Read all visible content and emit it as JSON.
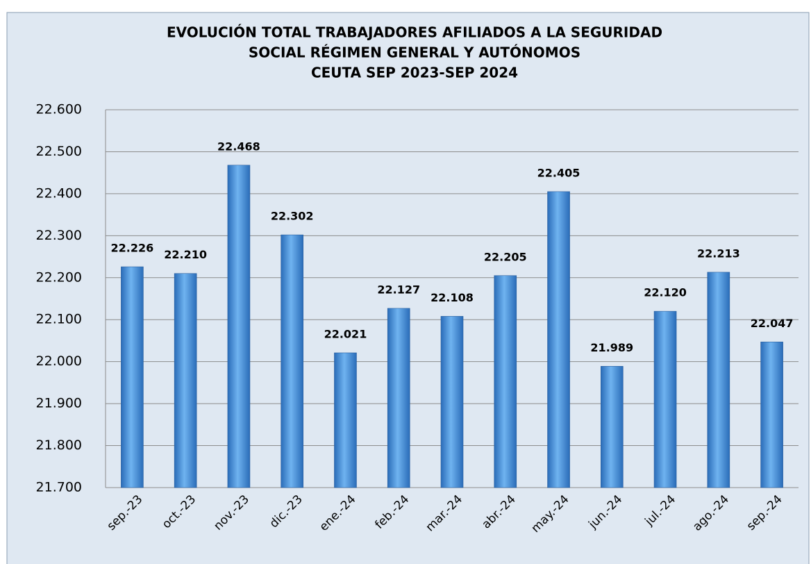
{
  "chart_data": {
    "type": "bar",
    "title": [
      "EVOLUCIÓN TOTAL TRABAJADORES AFILIADOS A LA SEGURIDAD",
      "SOCIAL RÉGIMEN GENERAL Y AUTÓNOMOS",
      "CEUTA SEP 2023-SEP 2024"
    ],
    "categories": [
      "sep.-23",
      "oct.-23",
      "nov.-23",
      "dic.-23",
      "ene.-24",
      "feb.-24",
      "mar.-24",
      "abr.-24",
      "may.-24",
      "jun.-24",
      "jul.-24",
      "ago.-24",
      "sep.-24"
    ],
    "values": [
      22226,
      22210,
      22468,
      22302,
      22021,
      22127,
      22108,
      22205,
      22405,
      21989,
      22120,
      22213,
      22047
    ],
    "value_labels": [
      "22.226",
      "22.210",
      "22.468",
      "22.302",
      "22.021",
      "22.127",
      "22.108",
      "22.205",
      "22.405",
      "21.989",
      "22.120",
      "22.213",
      "22.047"
    ],
    "color": "#4a90d9",
    "ylim": [
      21700,
      22600
    ],
    "yticks": [
      {
        "value": 21700,
        "label": "21.700"
      },
      {
        "value": 21800,
        "label": "21.800"
      },
      {
        "value": 21900,
        "label": "21.900"
      },
      {
        "value": 22000,
        "label": "22.000"
      },
      {
        "value": 22100,
        "label": "22.100"
      },
      {
        "value": 22200,
        "label": "22.200"
      },
      {
        "value": 22300,
        "label": "22.300"
      },
      {
        "value": 22400,
        "label": "22.400"
      },
      {
        "value": 22500,
        "label": "22.500"
      },
      {
        "value": 22600,
        "label": "22.600"
      }
    ],
    "grid": true
  }
}
